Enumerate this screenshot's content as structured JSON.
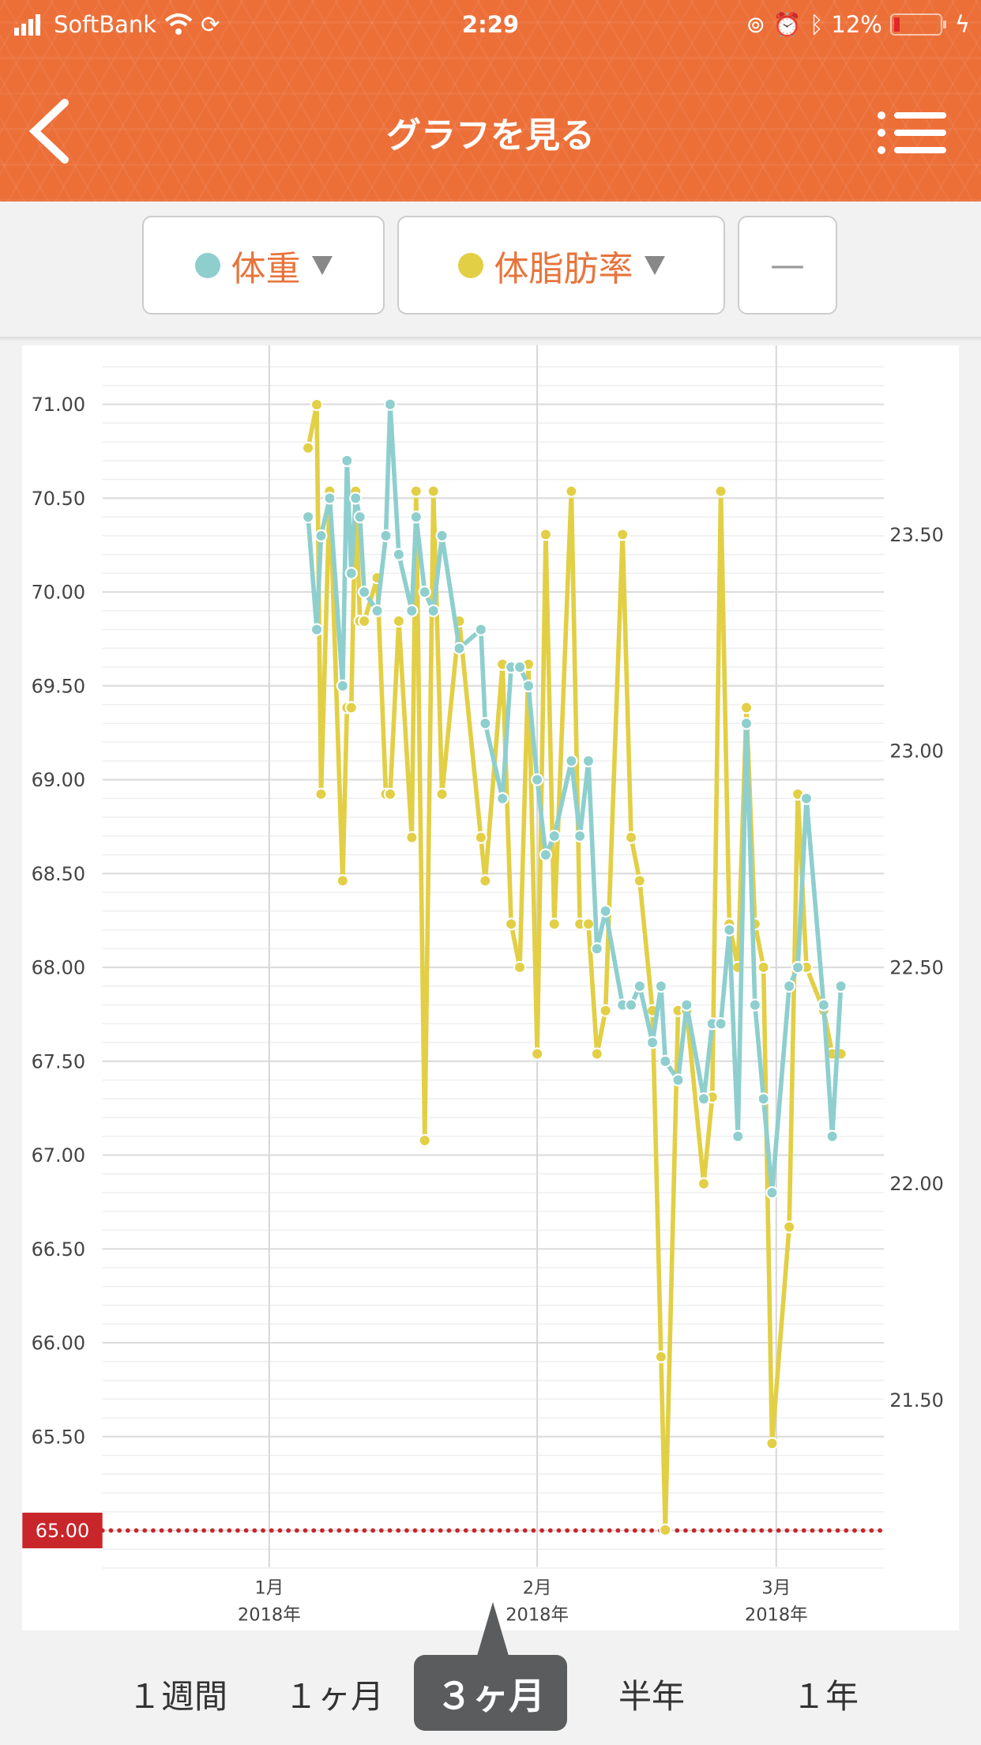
{
  "status_bar": {
    "carrier": "SoftBank",
    "time": "2:29",
    "battery": "12%",
    "icons": [
      "signal-icon",
      "wifi-icon",
      "sync-icon",
      "orientation-lock-icon",
      "alarm-icon",
      "bluetooth-icon",
      "battery-icon",
      "charging-icon"
    ]
  },
  "header": {
    "title": "グラフを見る",
    "back_icon": "chevron-left-icon",
    "menu_icon": "list-menu-icon",
    "color": "#ec6f38"
  },
  "filters": [
    {
      "label": "体重",
      "color": "#8ecfce"
    },
    {
      "label": "体脂肪率",
      "color": "#e2cf45"
    },
    {
      "label": "—"
    }
  ],
  "chart_data": {
    "type": "line",
    "x_ticks": [
      {
        "month": "1月",
        "year": "2018年",
        "date": "2018-01-01"
      },
      {
        "month": "2月",
        "year": "2018年",
        "date": "2018-02-01"
      },
      {
        "month": "3月",
        "year": "2018年",
        "date": "2018-03-01"
      }
    ],
    "y_left": {
      "ticks": [
        "65.50",
        "66.00",
        "66.50",
        "67.00",
        "67.50",
        "68.00",
        "68.50",
        "69.00",
        "69.50",
        "70.00",
        "70.50",
        "71.00"
      ],
      "range": [
        64.8,
        71.2
      ]
    },
    "y_right": {
      "ticks": [
        "21.50",
        "22.00",
        "22.50",
        "23.00",
        "23.50"
      ]
    },
    "target": {
      "label": "65.00",
      "value": 65.0,
      "color": "#c8262a"
    },
    "grid": true,
    "series": [
      {
        "name": "体重",
        "axis": "left",
        "color": "#8ecfce",
        "points": [
          [
            "2018-01-05 12",
            70.4
          ],
          [
            "2018-01-06 12",
            69.8
          ],
          [
            "2018-01-07 00",
            70.3
          ],
          [
            "2018-01-08 00",
            70.5
          ],
          [
            "2018-01-09 12",
            69.5
          ],
          [
            "2018-01-10 00",
            70.7
          ],
          [
            "2018-01-10 12",
            70.1
          ],
          [
            "2018-01-11 00",
            70.5
          ],
          [
            "2018-01-11 12",
            70.4
          ],
          [
            "2018-01-12 00",
            70.0
          ],
          [
            "2018-01-13 12",
            69.9
          ],
          [
            "2018-01-14 12",
            70.3
          ],
          [
            "2018-01-15 00",
            71.0
          ],
          [
            "2018-01-16 00",
            70.2
          ],
          [
            "2018-01-17 12",
            69.9
          ],
          [
            "2018-01-18 00",
            70.4
          ],
          [
            "2018-01-19 00",
            70.0
          ],
          [
            "2018-01-20 00",
            69.9
          ],
          [
            "2018-01-21 00",
            70.3
          ],
          [
            "2018-01-23 00",
            69.7
          ],
          [
            "2018-01-25 12",
            69.8
          ],
          [
            "2018-01-26 00",
            69.3
          ],
          [
            "2018-01-28 00",
            68.9
          ],
          [
            "2018-01-29 00",
            69.6
          ],
          [
            "2018-01-30 00",
            69.6
          ],
          [
            "2018-01-31 00",
            69.5
          ],
          [
            "2018-02-01 00",
            69.0
          ],
          [
            "2018-02-02 00",
            68.6
          ],
          [
            "2018-02-03 00",
            68.7
          ],
          [
            "2018-02-05 00",
            69.1
          ],
          [
            "2018-02-06 00",
            68.7
          ],
          [
            "2018-02-07 00",
            69.1
          ],
          [
            "2018-02-08 00",
            68.1
          ],
          [
            "2018-02-09 00",
            68.3
          ],
          [
            "2018-02-11 00",
            67.8
          ],
          [
            "2018-02-12 00",
            67.8
          ],
          [
            "2018-02-13 00",
            67.9
          ],
          [
            "2018-02-14 12",
            67.6
          ],
          [
            "2018-02-15 12",
            67.9
          ],
          [
            "2018-02-16 00",
            67.5
          ],
          [
            "2018-02-17 12",
            67.4
          ],
          [
            "2018-02-18 12",
            67.8
          ],
          [
            "2018-02-20 12",
            67.3
          ],
          [
            "2018-02-21 12",
            67.7
          ],
          [
            "2018-02-22 12",
            67.7
          ],
          [
            "2018-02-23 12",
            68.2
          ],
          [
            "2018-02-24 12",
            67.1
          ],
          [
            "2018-02-25 12",
            69.3
          ],
          [
            "2018-02-26 12",
            67.8
          ],
          [
            "2018-02-27 12",
            67.3
          ],
          [
            "2018-02-28 12",
            66.8
          ],
          [
            "2018-03-02 12",
            67.9
          ],
          [
            "2018-03-03 12",
            68.0
          ],
          [
            "2018-03-04 12",
            68.9
          ],
          [
            "2018-03-06 12",
            67.8
          ],
          [
            "2018-03-07 12",
            67.1
          ],
          [
            "2018-03-08 12",
            67.9
          ]
        ]
      },
      {
        "name": "体脂肪率",
        "axis": "right",
        "color": "#e2cf45",
        "points": [
          [
            "2018-01-05 12",
            23.7
          ],
          [
            "2018-01-06 12",
            23.8
          ],
          [
            "2018-01-07 00",
            22.9
          ],
          [
            "2018-01-08 00",
            23.6
          ],
          [
            "2018-01-09 12",
            22.7
          ],
          [
            "2018-01-10 00",
            23.1
          ],
          [
            "2018-01-10 12",
            23.1
          ],
          [
            "2018-01-11 00",
            23.6
          ],
          [
            "2018-01-11 12",
            23.3
          ],
          [
            "2018-01-12 00",
            23.3
          ],
          [
            "2018-01-13 12",
            23.4
          ],
          [
            "2018-01-14 12",
            22.9
          ],
          [
            "2018-01-15 00",
            22.9
          ],
          [
            "2018-01-16 00",
            23.3
          ],
          [
            "2018-01-17 12",
            22.8
          ],
          [
            "2018-01-18 00",
            23.6
          ],
          [
            "2018-01-19 00",
            22.1
          ],
          [
            "2018-01-20 00",
            23.6
          ],
          [
            "2018-01-21 00",
            22.9
          ],
          [
            "2018-01-23 00",
            23.3
          ],
          [
            "2018-01-25 12",
            22.8
          ],
          [
            "2018-01-26 00",
            22.7
          ],
          [
            "2018-01-28 00",
            23.2
          ],
          [
            "2018-01-29 00",
            22.6
          ],
          [
            "2018-01-30 00",
            22.5
          ],
          [
            "2018-01-31 00",
            23.2
          ],
          [
            "2018-02-01 00",
            22.3
          ],
          [
            "2018-02-02 00",
            23.5
          ],
          [
            "2018-02-03 00",
            22.6
          ],
          [
            "2018-02-05 00",
            23.6
          ],
          [
            "2018-02-06 00",
            22.6
          ],
          [
            "2018-02-07 00",
            22.6
          ],
          [
            "2018-02-08 00",
            22.3
          ],
          [
            "2018-02-09 00",
            22.4
          ],
          [
            "2018-02-11 00",
            23.5
          ],
          [
            "2018-02-12 00",
            22.8
          ],
          [
            "2018-02-13 00",
            22.7
          ],
          [
            "2018-02-14 12",
            22.4
          ],
          [
            "2018-02-15 12",
            21.6
          ],
          [
            "2018-02-16 00",
            21.2
          ],
          [
            "2018-02-17 12",
            22.4
          ],
          [
            "2018-02-18 12",
            22.4
          ],
          [
            "2018-02-20 12",
            22.0
          ],
          [
            "2018-02-21 12",
            22.2
          ],
          [
            "2018-02-22 12",
            23.6
          ],
          [
            "2018-02-23 12",
            22.6
          ],
          [
            "2018-02-24 12",
            22.5
          ],
          [
            "2018-02-25 12",
            23.1
          ],
          [
            "2018-02-26 12",
            22.6
          ],
          [
            "2018-02-27 12",
            22.5
          ],
          [
            "2018-02-28 12",
            21.4
          ],
          [
            "2018-03-02 12",
            21.9
          ],
          [
            "2018-03-03 12",
            22.9
          ],
          [
            "2018-03-04 12",
            22.5
          ],
          [
            "2018-03-06 12",
            22.4
          ],
          [
            "2018-03-07 12",
            22.3
          ],
          [
            "2018-03-08 12",
            22.3
          ]
        ]
      }
    ]
  },
  "range_tabs": [
    {
      "label": "１週間"
    },
    {
      "label": "１ヶ月"
    },
    {
      "label": "３ヶ月",
      "active": true
    },
    {
      "label": "半年"
    },
    {
      "label": "１年"
    }
  ]
}
